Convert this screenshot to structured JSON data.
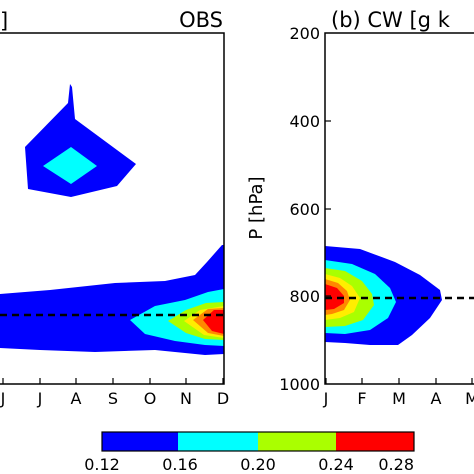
{
  "chart_data": [
    {
      "type": "contour",
      "panel": "a",
      "title_right": "OBS",
      "title_left_fragment": "]",
      "xlabel": "",
      "ylabel": "",
      "x_tick_labels": [
        "J",
        "A",
        "S",
        "O",
        "N",
        "D"
      ],
      "x_visible_months": [
        "Jun",
        "Jul",
        "Aug",
        "Sep",
        "Oct",
        "Nov",
        "Dec"
      ],
      "reference_line": {
        "P_hPa": 840,
        "style": "dashed",
        "color": "#000000"
      },
      "levels": [
        0.12,
        0.16,
        0.2,
        0.24,
        0.28
      ],
      "features": [
        {
          "name": "upper layer",
          "months": [
            "Jul",
            "Aug",
            "Sep"
          ],
          "P_hPa_range": [
            320,
            560
          ],
          "max_value": 0.18
        },
        {
          "name": "low cloud layer",
          "months": [
            "Jun",
            "Jul",
            "Aug",
            "Sep",
            "Oct",
            "Nov",
            "Dec"
          ],
          "P_hPa_range": [
            730,
            920
          ],
          "max_value": 0.28,
          "peak_month": "Dec",
          "peak_P_hPa": 840
        }
      ]
    },
    {
      "type": "contour",
      "panel": "b",
      "title": "(b) CW [g k",
      "ylabel": "P [hPa]",
      "xlabel": "",
      "x_tick_labels": [
        "J",
        "F",
        "M",
        "A",
        "M"
      ],
      "y_tick_labels": [
        "200",
        "400",
        "600",
        "800",
        "1000"
      ],
      "ylim": [
        1000,
        200
      ],
      "reference_line": {
        "P_hPa": 800,
        "style": "dashed",
        "color": "#000000"
      },
      "levels": [
        0.12,
        0.16,
        0.2,
        0.24,
        0.28
      ],
      "features": [
        {
          "name": "low cloud layer",
          "months": [
            "Jan",
            "Feb",
            "Mar",
            "Apr"
          ],
          "P_hPa_range": [
            700,
            900
          ],
          "max_value": 0.28,
          "peak_month": "Jan",
          "peak_P_hPa": 800
        }
      ]
    }
  ],
  "colorbar": {
    "tick_labels": [
      "0.12",
      "0.16",
      "0.20",
      "0.24",
      "0.28"
    ],
    "colors": [
      "#0000ff",
      "#00ffff",
      "#aaff00",
      "#ff0000"
    ]
  }
}
